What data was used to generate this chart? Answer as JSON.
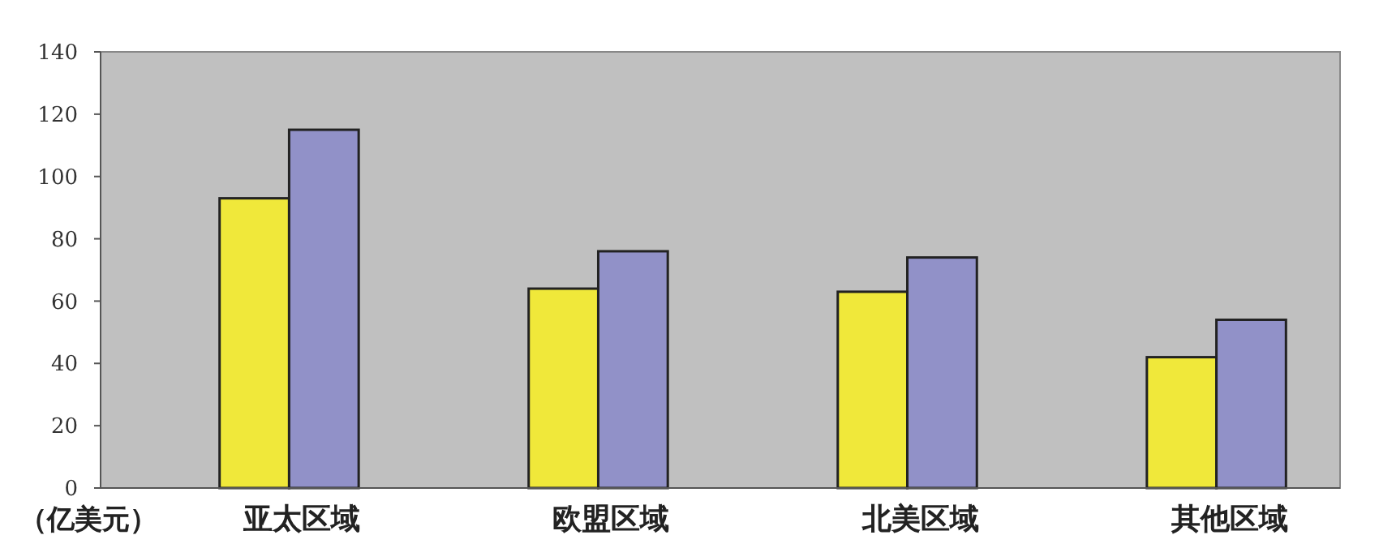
{
  "chart_data": {
    "type": "bar",
    "ylabel": "（亿美元）",
    "categories": [
      "亚太区域",
      "欧盟区域",
      "北美区域",
      "其他区域"
    ],
    "series": [
      {
        "color": "#f0e83a",
        "values": [
          93,
          64,
          63,
          42
        ]
      },
      {
        "color": "#9191c8",
        "values": [
          115,
          76,
          74,
          54
        ]
      }
    ],
    "ylim": [
      0,
      140
    ],
    "yticks": [
      0,
      20,
      40,
      60,
      80,
      100,
      120,
      140
    ],
    "grid": false
  }
}
